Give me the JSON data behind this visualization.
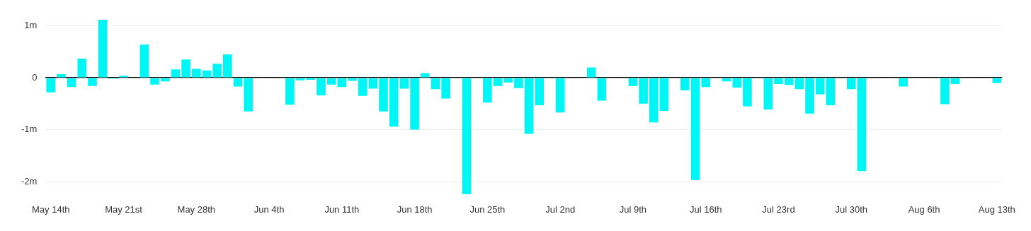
{
  "chart_data": {
    "type": "bar",
    "categories": [
      "May 14th",
      null,
      null,
      null,
      null,
      null,
      null,
      "May 21st",
      null,
      null,
      null,
      null,
      null,
      null,
      "May 28th",
      null,
      null,
      null,
      null,
      null,
      null,
      "Jun 4th",
      null,
      null,
      null,
      null,
      null,
      null,
      "Jun 11th",
      null,
      null,
      null,
      null,
      null,
      null,
      "Jun 18th",
      null,
      null,
      null,
      null,
      null,
      null,
      "Jun 25th",
      null,
      null,
      null,
      null,
      null,
      null,
      "Jul 2nd",
      null,
      null,
      null,
      null,
      null,
      null,
      "Jul 9th",
      null,
      null,
      null,
      null,
      null,
      null,
      "Jul 16th",
      null,
      null,
      null,
      null,
      null,
      null,
      "Jul 23rd",
      null,
      null,
      null,
      null,
      null,
      null,
      "Jul 30th",
      null,
      null,
      null,
      null,
      null,
      null,
      "Aug 6th",
      null,
      null,
      null,
      null,
      null,
      null,
      "Aug 13th"
    ],
    "series": [
      {
        "color": "#00f5f5",
        "values": [
          -0.28,
          0.07,
          -0.18,
          0.37,
          -0.16,
          1.12,
          -0.02,
          0.04,
          null,
          0.64,
          -0.13,
          -0.07,
          0.16,
          0.35,
          0.17,
          0.14,
          0.27,
          0.45,
          -0.17,
          -0.65,
          null,
          null,
          null,
          -0.52,
          -0.05,
          -0.04,
          -0.34,
          -0.13,
          -0.18,
          -0.06,
          -0.35,
          -0.21,
          -0.65,
          -0.94,
          -0.21,
          -1.0,
          0.09,
          -0.22,
          -0.4,
          null,
          -2.24,
          null,
          -0.48,
          -0.16,
          -0.09,
          -0.2,
          -1.08,
          -0.53,
          null,
          -0.67,
          null,
          null,
          0.2,
          -0.44,
          null,
          null,
          -0.16,
          -0.5,
          -0.86,
          -0.64,
          null,
          -0.24,
          -1.97,
          -0.18,
          null,
          -0.07,
          -0.19,
          -0.55,
          null,
          -0.61,
          -0.12,
          -0.14,
          -0.22,
          -0.69,
          -0.32,
          -0.53,
          null,
          -0.22,
          -1.8,
          null,
          null,
          null,
          -0.17,
          null,
          null,
          null,
          -0.51,
          -0.12,
          null,
          null,
          null,
          -0.1
        ]
      }
    ],
    "ylim": [
      -2.25,
      1.12
    ],
    "yticks": [
      {
        "value": -2,
        "label": "-2m"
      },
      {
        "value": -1,
        "label": "-1m"
      },
      {
        "value": 0,
        "label": "0"
      },
      {
        "value": 1,
        "label": "1m"
      }
    ],
    "grid": "y",
    "legend": false
  }
}
